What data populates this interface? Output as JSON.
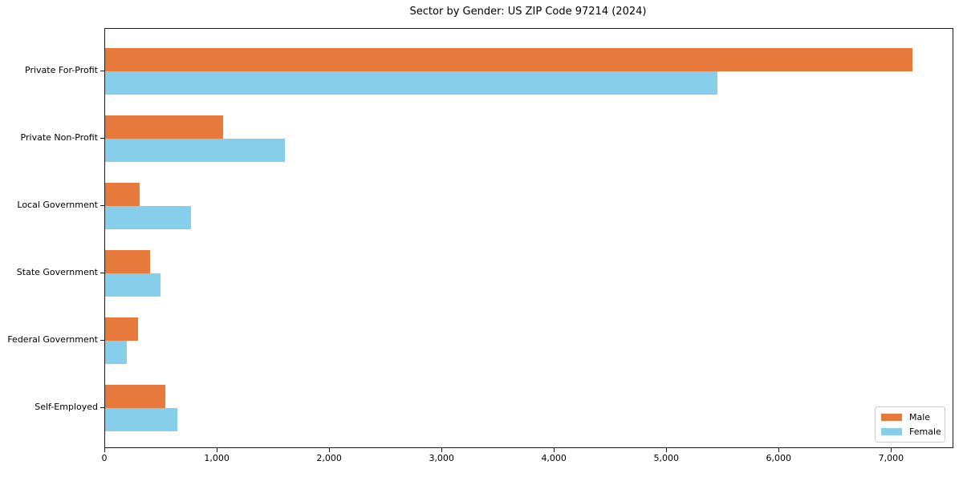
{
  "chart_data": {
    "type": "bar",
    "orientation": "horizontal",
    "title": "Sector by Gender: US ZIP Code 97214 (2024)",
    "categories": [
      "Private For-Profit",
      "Private Non-Profit",
      "Local Government",
      "State Government",
      "Federal Government",
      "Self-Employed"
    ],
    "series": [
      {
        "name": "Male",
        "color": "#e8793d",
        "values": [
          7180,
          1050,
          305,
          400,
          290,
          535
        ]
      },
      {
        "name": "Female",
        "color": "#87ceeb",
        "values": [
          5450,
          1600,
          765,
          490,
          195,
          640
        ]
      }
    ],
    "xlabel": "",
    "ylabel": "",
    "xlim": [
      0,
      7540
    ],
    "xticks": [
      0,
      1000,
      2000,
      3000,
      4000,
      5000,
      6000,
      7000
    ],
    "xtick_labels": [
      "0",
      "1,000",
      "2,000",
      "3,000",
      "4,000",
      "5,000",
      "6,000",
      "7,000"
    ],
    "grid": false,
    "legend_position": "lower right",
    "axis_color": "#1a1a1a"
  }
}
